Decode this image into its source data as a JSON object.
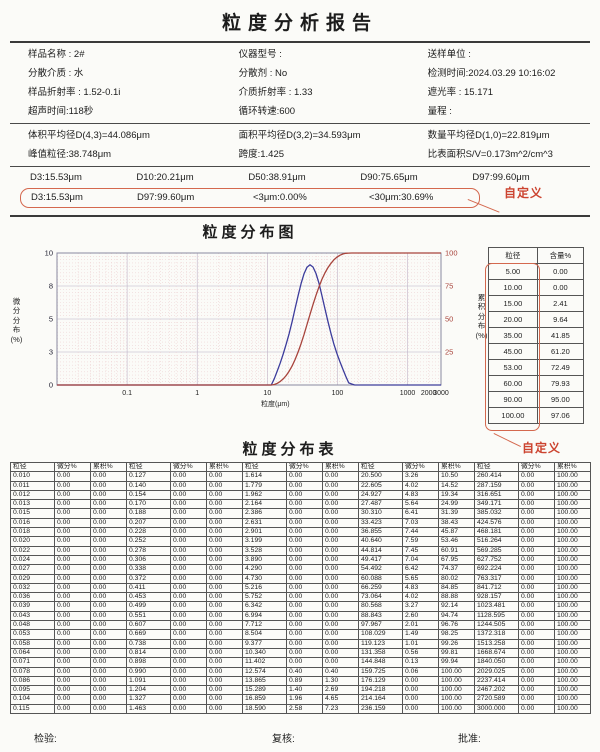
{
  "title": "粒度分析报告",
  "header": {
    "rows": [
      [
        "样品名称 : 2#",
        "仪器型号 :",
        "送样单位 :"
      ],
      [
        "分散介质 : 水",
        "分散剂 : No",
        "检测时间:2024.03.29 10:16:02"
      ],
      [
        "样品折射率 : 1.52-0.1i",
        "介质折射率 : 1.33",
        "遮光率 : 15.171"
      ],
      [
        "超声时间:118秒",
        "循环转速:600",
        "量程 :"
      ]
    ]
  },
  "means": {
    "rows": [
      [
        "体积平均径D(4,3)=44.086μm",
        "面积平均径D(3,2)=34.593μm",
        "数量平均径D(1,0)=22.819μm"
      ],
      [
        "峰值粒径:38.748μm",
        "跨度:1.425",
        "比表面积S/V=0.173m^2/cm^3"
      ]
    ]
  },
  "d_values": [
    "D3:15.53μm",
    "D10:20.21μm",
    "D50:38.91μm",
    "D90:75.65μm",
    "D97:99.60μm"
  ],
  "custom_values": [
    "D3:15.53μm",
    "D97:99.60μm",
    "<3μm:0.00%",
    "<30μm:30.69%"
  ],
  "annotations": {
    "custom_label": "自定义"
  },
  "chart_section_title": "粒度分布图",
  "table_section_title": "粒度分布表",
  "chart_data": {
    "type": "line",
    "title": "粒度分布图",
    "xlabel": "粒度(μm)",
    "ylabel_left": "微分分布(%)",
    "ylabel_right": "累积分布(%)",
    "x_scale": "log",
    "xlim": [
      0.01,
      3000
    ],
    "ylim_left": [
      0,
      10
    ],
    "ylim_right": [
      0,
      100
    ],
    "x_tick_values": [
      0.1,
      1,
      10,
      100,
      1000,
      2000,
      3000
    ],
    "x_tick_labels": [
      "0.1",
      "1",
      "10",
      "100",
      "1000",
      "2000",
      "3000"
    ],
    "yleft_tick_values": [
      0,
      2.5,
      5,
      7.5,
      10
    ],
    "yleft_tick_labels": [
      "0",
      "3",
      "5",
      "8",
      "10"
    ],
    "yright_tick_values": [
      25,
      50,
      75,
      100
    ],
    "yright_tick_labels": [
      "25",
      "50",
      "75",
      "100"
    ],
    "grid": "on",
    "series": [
      {
        "name": "differential",
        "color": "#3c3c9c",
        "axis": "left",
        "x": [
          0.01,
          11.402,
          12.574,
          13.865,
          15.289,
          16.859,
          18.59,
          20.5,
          22.605,
          24.927,
          27.487,
          30.31,
          33.423,
          36.855,
          40.64,
          44.814,
          49.417,
          54.492,
          60.088,
          66.259,
          73.064,
          80.568,
          88.843,
          97.967,
          108.029,
          119.123,
          131.358,
          144.848,
          159.725,
          176.129,
          3000
        ],
        "y": [
          0,
          0,
          0.4,
          0.89,
          1.4,
          1.96,
          2.58,
          3.26,
          4.02,
          4.83,
          5.64,
          6.41,
          7.03,
          7.44,
          7.59,
          7.45,
          7.04,
          6.42,
          5.65,
          4.83,
          4.02,
          3.27,
          2.6,
          2.01,
          1.49,
          1.01,
          0.56,
          0.13,
          0.06,
          0,
          0
        ]
      },
      {
        "name": "cumulative",
        "color": "#a8443c",
        "axis": "right",
        "x": [
          0.01,
          11.402,
          12.574,
          13.865,
          15.289,
          16.859,
          18.59,
          20.5,
          22.605,
          24.927,
          27.487,
          30.31,
          33.423,
          36.855,
          40.64,
          44.814,
          49.417,
          54.492,
          60.088,
          66.259,
          73.064,
          80.568,
          88.843,
          97.967,
          108.029,
          119.123,
          131.358,
          144.848,
          159.725,
          3000
        ],
        "y": [
          0,
          0,
          0.4,
          1.3,
          2.69,
          4.65,
          7.23,
          10.5,
          14.52,
          19.34,
          24.99,
          31.39,
          38.43,
          45.87,
          53.46,
          60.91,
          67.95,
          74.37,
          80.02,
          84.85,
          88.88,
          92.14,
          94.74,
          96.76,
          98.25,
          99.26,
          99.81,
          99.94,
          100.0,
          100.0
        ]
      }
    ]
  },
  "side_table": {
    "headers": [
      "粒径",
      "含量%"
    ],
    "rows": [
      [
        "5.00",
        "0.00"
      ],
      [
        "10.00",
        "0.00"
      ],
      [
        "15.00",
        "2.41"
      ],
      [
        "20.00",
        "9.64"
      ],
      [
        "35.00",
        "41.85"
      ],
      [
        "45.00",
        "61.20"
      ],
      [
        "53.00",
        "72.49"
      ],
      [
        "60.00",
        "79.93"
      ],
      [
        "90.00",
        "95.00"
      ],
      [
        "100.00",
        "97.06"
      ]
    ]
  },
  "dist_table": {
    "headers": [
      "粒径",
      "微分%",
      "累积%"
    ],
    "groups": [
      {
        "sizes": [
          "0.010",
          "0.011",
          "0.012",
          "0.013",
          "0.015",
          "0.016",
          "0.018",
          "0.020",
          "0.022",
          "0.024",
          "0.027",
          "0.029",
          "0.032",
          "0.036",
          "0.039",
          "0.043",
          "0.048",
          "0.053",
          "0.058",
          "0.064",
          "0.071",
          "0.078",
          "0.086",
          "0.095",
          "0.104",
          "0.115"
        ],
        "diff": "0.00",
        "cum": "0.00"
      },
      {
        "sizes": [
          "0.127",
          "0.140",
          "0.154",
          "0.170",
          "0.188",
          "0.207",
          "0.228",
          "0.252",
          "0.278",
          "0.306",
          "0.338",
          "0.372",
          "0.411",
          "0.453",
          "0.499",
          "0.551",
          "0.607",
          "0.669",
          "0.738",
          "0.814",
          "0.898",
          "0.990",
          "1.091",
          "1.204",
          "1.327",
          "1.463"
        ],
        "diff": "0.00",
        "cum": "0.00"
      },
      {
        "sizes": [
          "1.614",
          "1.779",
          "1.962",
          "2.164",
          "2.386",
          "2.631",
          "2.901",
          "3.199",
          "3.528",
          "3.890",
          "4.290",
          "4.730",
          "5.216",
          "5.752",
          "6.342",
          "6.994",
          "7.712",
          "8.504",
          "9.377",
          "10.340",
          "11.402",
          "12.574",
          "13.865",
          "15.289",
          "16.859",
          "18.590"
        ],
        "diff": [
          "0.00",
          "0.00",
          "0.00",
          "0.00",
          "0.00",
          "0.00",
          "0.00",
          "0.00",
          "0.00",
          "0.00",
          "0.00",
          "0.00",
          "0.00",
          "0.00",
          "0.00",
          "0.00",
          "0.00",
          "0.00",
          "0.00",
          "0.00",
          "0.00",
          "0.40",
          "0.89",
          "1.40",
          "1.96",
          "2.58"
        ],
        "cum": [
          "0.00",
          "0.00",
          "0.00",
          "0.00",
          "0.00",
          "0.00",
          "0.00",
          "0.00",
          "0.00",
          "0.00",
          "0.00",
          "0.00",
          "0.00",
          "0.00",
          "0.00",
          "0.00",
          "0.00",
          "0.00",
          "0.00",
          "0.00",
          "0.00",
          "0.40",
          "1.30",
          "2.69",
          "4.65",
          "7.23"
        ]
      },
      {
        "sizes": [
          "20.500",
          "22.605",
          "24.927",
          "27.487",
          "30.310",
          "33.423",
          "36.855",
          "40.640",
          "44.814",
          "49.417",
          "54.492",
          "60.088",
          "66.259",
          "73.064",
          "80.568",
          "88.843",
          "97.967",
          "108.029",
          "119.123",
          "131.358",
          "144.848",
          "159.725",
          "176.129",
          "194.218",
          "214.164",
          "236.159"
        ],
        "diff": [
          "3.26",
          "4.02",
          "4.83",
          "5.64",
          "6.41",
          "7.03",
          "7.44",
          "7.59",
          "7.45",
          "7.04",
          "6.42",
          "5.65",
          "4.83",
          "4.02",
          "3.27",
          "2.60",
          "2.01",
          "1.49",
          "1.01",
          "0.56",
          "0.13",
          "0.06",
          "0.00",
          "0.00",
          "0.00",
          "0.00"
        ],
        "cum": [
          "10.50",
          "14.52",
          "19.34",
          "24.99",
          "31.39",
          "38.43",
          "45.87",
          "53.46",
          "60.91",
          "67.95",
          "74.37",
          "80.02",
          "84.85",
          "88.88",
          "92.14",
          "94.74",
          "96.76",
          "98.25",
          "99.26",
          "99.81",
          "99.94",
          "100.00",
          "100.00",
          "100.00",
          "100.00",
          "100.00"
        ]
      },
      {
        "sizes": [
          "260.414",
          "287.159",
          "316.651",
          "349.171",
          "385.032",
          "424.576",
          "468.181",
          "516.264",
          "569.285",
          "627.752",
          "692.224",
          "763.317",
          "841.712",
          "928.157",
          "1023.481",
          "1128.595",
          "1244.505",
          "1372.318",
          "1513.258",
          "1668.674",
          "1840.050",
          "2029.025",
          "2237.414",
          "2467.202",
          "2720.589",
          "3000.000"
        ],
        "diff": "0.00",
        "cum": "100.00"
      }
    ]
  },
  "footer": [
    "检验:",
    "复核:",
    "批准:"
  ]
}
